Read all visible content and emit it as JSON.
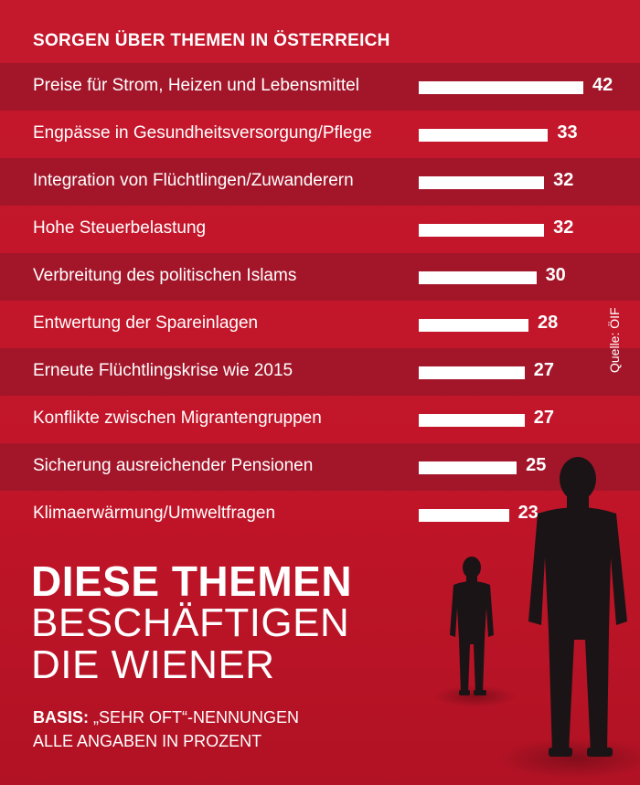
{
  "chart_data": {
    "type": "bar",
    "orientation": "horizontal",
    "title": "SORGEN ÜBER THEMEN IN ÖSTERREICH",
    "categories": [
      "Preise für Strom, Heizen und Lebensmittel",
      "Engpässe in Gesundheitsversorgung/Pflege",
      "Integration von Flüchtlingen/Zuwanderern",
      "Hohe Steuerbelastung",
      "Verbreitung des politischen Islams",
      "Entwertung der Spareinlagen",
      "Erneute Flüchtlingskrise wie 2015",
      "Konflikte zwischen Migrantengruppen",
      "Sicherung ausreichender Pensionen",
      "Klimaerwärmung/Umweltfragen"
    ],
    "values": [
      42,
      33,
      32,
      32,
      30,
      28,
      27,
      27,
      25,
      23
    ],
    "value_labels": [
      "42",
      "33",
      "32",
      "32",
      "30",
      "28",
      "27",
      "27",
      "25",
      "23"
    ],
    "xlim": [
      0,
      42
    ],
    "grid": false,
    "legend": "none"
  },
  "source": "Quelle: ÖIF",
  "headline": {
    "line1": "DIESE THEMEN",
    "line2": "BESCHÄFTIGEN",
    "line3": "DIE WIENER"
  },
  "basis": {
    "label": "BASIS:",
    "text": " „SEHR OFT“-NENNUNGEN",
    "line2": "ALLE ANGABEN IN PROZENT"
  },
  "colors": {
    "background": "#c4162c",
    "stripe": "#a3162a",
    "bar": "#ffffff",
    "silhouette": "#1a1416"
  }
}
